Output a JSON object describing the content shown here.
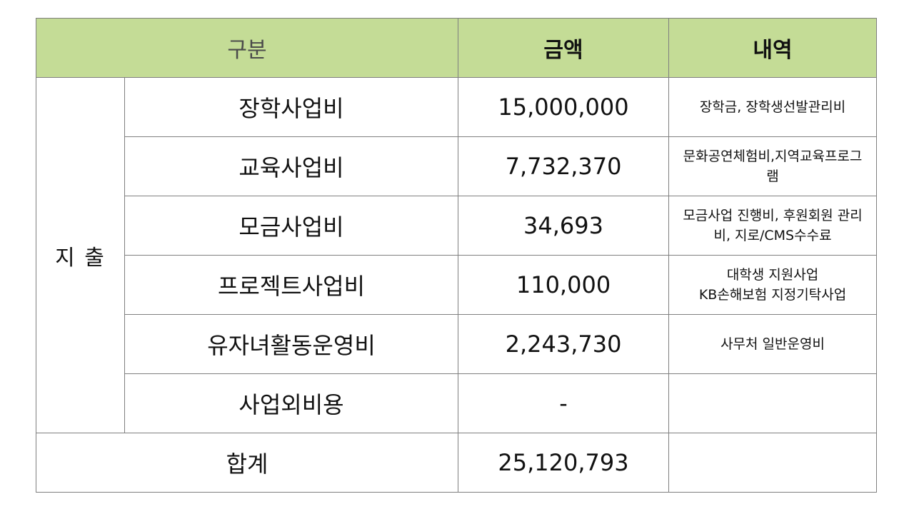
{
  "header": {
    "gubun": "구분",
    "amount": "금액",
    "detail": "내역"
  },
  "section_label": "지 출",
  "rows": [
    {
      "name": "장학사업비",
      "amount": "15,000,000",
      "detail": "장학금, 장학생선발관리비"
    },
    {
      "name": "교육사업비",
      "amount": "7,732,370",
      "detail": "문화공연체험비,지역교육프로그\n램"
    },
    {
      "name": "모금사업비",
      "amount": "34,693",
      "detail": "모금사업 진행비, 후원회원 관리\n비, 지로/CMS수수료"
    },
    {
      "name": "프로젝트사업비",
      "amount": "110,000",
      "detail": "대학생 지원사업\nKB손해보험 지정기탁사업"
    },
    {
      "name": "유자녀활동운영비",
      "amount": "2,243,730",
      "detail": "사무처 일반운영비"
    },
    {
      "name": "사업외비용",
      "amount": "-",
      "detail": ""
    }
  ],
  "total": {
    "label": "합계",
    "amount": "25,120,793",
    "detail": ""
  },
  "colors": {
    "header_bg": "#c4dc96",
    "border": "#7f7f7f"
  }
}
